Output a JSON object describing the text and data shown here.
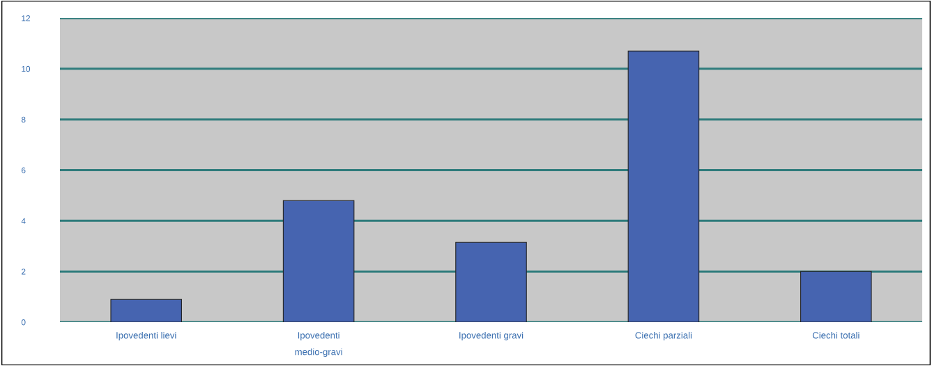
{
  "chart_data": {
    "type": "bar",
    "categories": [
      "Ipovedenti lievi",
      "Ipovedenti medio-gravi",
      "Ipovedenti gravi",
      "Ciechi parziali",
      "Ciechi totali"
    ],
    "values": [
      0.9,
      4.8,
      3.15,
      10.7,
      2.0
    ],
    "color": "#4664b0",
    "ylim": [
      0,
      12
    ],
    "yticks": [
      0,
      2,
      4,
      6,
      8,
      10,
      12
    ],
    "grid": "y"
  }
}
